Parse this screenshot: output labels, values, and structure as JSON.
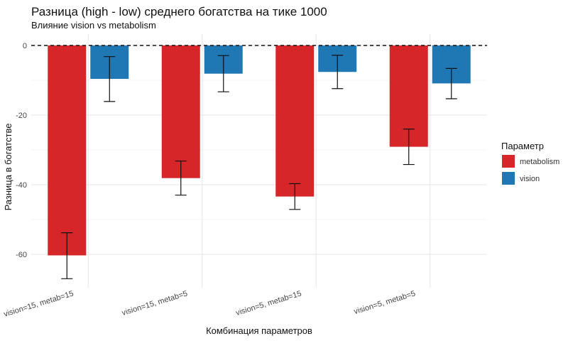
{
  "chart_data": {
    "type": "bar",
    "title": "Разница (high - low) среднего богатства на тике 1000",
    "subtitle": "Влияние vision vs metabolism",
    "xlabel": "Комбинация параметров",
    "ylabel": "Разница в богатстве",
    "categories": [
      "vision=15, metab=15",
      "vision=15, metab=5",
      "vision=5, metab=15",
      "vision=5, metab=5"
    ],
    "ylim": [
      -70,
      0
    ],
    "yticks": [
      0,
      -20,
      -40,
      -60
    ],
    "reference_line": 0,
    "grid": true,
    "legend": {
      "title": "Параметр",
      "position": "right"
    },
    "series": [
      {
        "name": "metabolism",
        "color": "#d7262a",
        "values": [
          -60.3,
          -38.1,
          -43.4,
          -29.1
        ],
        "error_low": [
          -67.0,
          -43.0,
          -47.1,
          -34.2
        ],
        "error_high": [
          -53.8,
          -33.2,
          -39.7,
          -24.0
        ]
      },
      {
        "name": "vision",
        "color": "#1f77b4",
        "values": [
          -9.6,
          -8.1,
          -7.6,
          -10.9
        ],
        "error_low": [
          -16.1,
          -13.3,
          -12.4,
          -15.3
        ],
        "error_high": [
          -3.2,
          -2.9,
          -2.8,
          -6.6
        ]
      }
    ]
  }
}
